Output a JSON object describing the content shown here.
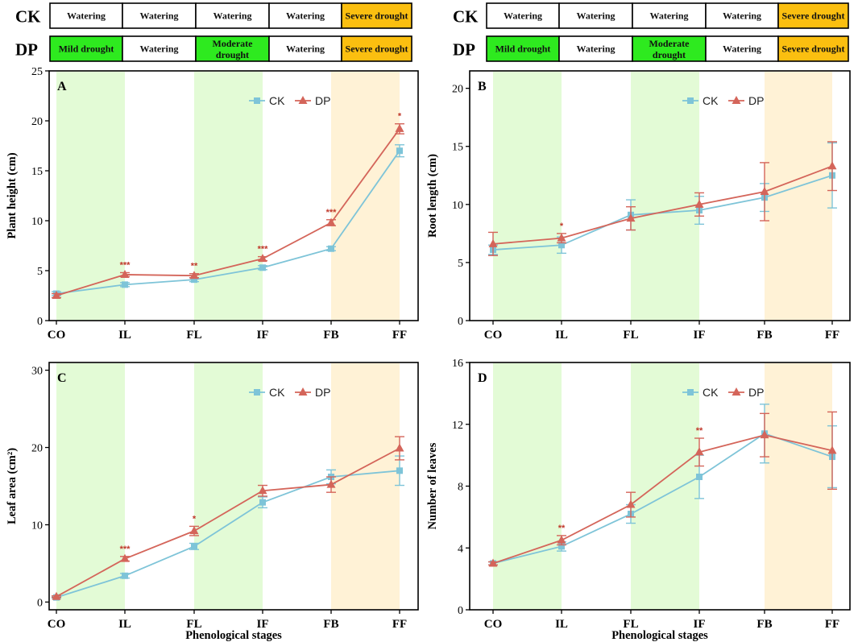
{
  "colors": {
    "ck": "#7ec4d8",
    "dp": "#d4655a",
    "watering": "#ffffff",
    "mild": "#2eea1f",
    "moderate": "#2eea1f",
    "severe": "#fbbf10",
    "band_green": "#e3fbd6",
    "band_orange": "#fff2d6",
    "star": "#c0392b"
  },
  "treatments": [
    {
      "label": "CK",
      "segments": [
        {
          "text": "Watering",
          "kind": "watering"
        },
        {
          "text": "Watering",
          "kind": "watering"
        },
        {
          "text": "Watering",
          "kind": "watering"
        },
        {
          "text": "Watering",
          "kind": "watering"
        },
        {
          "text": "Severe drought",
          "kind": "severe"
        }
      ]
    },
    {
      "label": "DP",
      "segments": [
        {
          "text": "Mild drought",
          "kind": "mild"
        },
        {
          "text": "Watering",
          "kind": "watering"
        },
        {
          "text": "Moderate drought",
          "kind": "moderate"
        },
        {
          "text": "Watering",
          "kind": "watering"
        },
        {
          "text": "Severe drought",
          "kind": "severe"
        }
      ]
    }
  ],
  "chart_data": [
    {
      "id": "A",
      "type": "line",
      "categories": [
        "CO",
        "IL",
        "FL",
        "IF",
        "FB",
        "FF"
      ],
      "xlabel": "",
      "ylabel": "Plant height (cm)",
      "ylim": [
        0,
        25
      ],
      "yticks": [
        0,
        5,
        10,
        15,
        20,
        25
      ],
      "bands": [
        {
          "from": 0,
          "to": 1,
          "kind": "band_green"
        },
        {
          "from": 2,
          "to": 3,
          "kind": "band_green"
        },
        {
          "from": 4,
          "to": 5,
          "kind": "band_orange"
        }
      ],
      "legend": [
        "CK",
        "DP"
      ],
      "series": [
        {
          "name": "CK",
          "values": [
            2.7,
            3.6,
            4.1,
            5.3,
            7.2,
            17.0
          ],
          "errors": [
            0.2,
            0.2,
            0.2,
            0.2,
            0.2,
            0.6
          ]
        },
        {
          "name": "DP",
          "values": [
            2.5,
            4.6,
            4.5,
            6.2,
            9.8,
            19.2
          ],
          "errors": [
            0.2,
            0.2,
            0.2,
            0.2,
            0.3,
            0.5
          ]
        }
      ],
      "significance": [
        "",
        "***",
        "**",
        "***",
        "***",
        "*"
      ]
    },
    {
      "id": "B",
      "type": "line",
      "categories": [
        "CO",
        "IL",
        "FL",
        "IF",
        "FB",
        "FF"
      ],
      "xlabel": "",
      "ylabel": "Root length (cm)",
      "ylim": [
        0,
        21.5
      ],
      "yticks": [
        0,
        5,
        10,
        15,
        20
      ],
      "bands": [
        {
          "from": 0,
          "to": 1,
          "kind": "band_green"
        },
        {
          "from": 2,
          "to": 3,
          "kind": "band_green"
        },
        {
          "from": 4,
          "to": 5,
          "kind": "band_orange"
        }
      ],
      "legend": [
        "CK",
        "DP"
      ],
      "series": [
        {
          "name": "CK",
          "values": [
            6.1,
            6.5,
            9.1,
            9.5,
            10.6,
            12.5
          ],
          "errors": [
            0.4,
            0.7,
            1.3,
            1.2,
            1.2,
            2.8
          ]
        },
        {
          "name": "DP",
          "values": [
            6.6,
            7.1,
            8.8,
            10.0,
            11.1,
            13.3
          ],
          "errors": [
            1.0,
            0.4,
            1.0,
            1.0,
            2.5,
            2.1
          ]
        }
      ],
      "significance": [
        "",
        "*",
        "",
        "",
        "",
        ""
      ]
    },
    {
      "id": "C",
      "type": "line",
      "categories": [
        "CO",
        "IL",
        "FL",
        "IF",
        "FB",
        "FF"
      ],
      "xlabel": "Phenological stages",
      "ylabel": "Leaf area (cm²)",
      "ylim": [
        -1,
        31
      ],
      "yticks": [
        0,
        10,
        20,
        30
      ],
      "bands": [
        {
          "from": 0,
          "to": 1,
          "kind": "band_green"
        },
        {
          "from": 2,
          "to": 3,
          "kind": "band_green"
        },
        {
          "from": 4,
          "to": 5,
          "kind": "band_orange"
        }
      ],
      "legend": [
        "CK",
        "DP"
      ],
      "series": [
        {
          "name": "CK",
          "values": [
            0.6,
            3.4,
            7.2,
            12.9,
            16.2,
            17.0
          ],
          "errors": [
            0.1,
            0.3,
            0.4,
            0.7,
            0.9,
            1.9
          ]
        },
        {
          "name": "DP",
          "values": [
            0.7,
            5.6,
            9.2,
            14.4,
            15.2,
            19.9
          ],
          "errors": [
            0.1,
            0.3,
            0.6,
            0.7,
            1.0,
            1.5
          ]
        }
      ],
      "significance": [
        "",
        "***",
        "*",
        "",
        "",
        ""
      ]
    },
    {
      "id": "D",
      "type": "line",
      "categories": [
        "CO",
        "IL",
        "FL",
        "IF",
        "FB",
        "FF"
      ],
      "xlabel": "Phenological stages",
      "ylabel": "Number of leaves",
      "ylim": [
        0,
        16
      ],
      "yticks": [
        0,
        4,
        8,
        12,
        16
      ],
      "bands": [
        {
          "from": 0,
          "to": 1,
          "kind": "band_green"
        },
        {
          "from": 2,
          "to": 3,
          "kind": "band_green"
        },
        {
          "from": 4,
          "to": 5,
          "kind": "band_orange"
        }
      ],
      "legend": [
        "CK",
        "DP"
      ],
      "series": [
        {
          "name": "CK",
          "values": [
            3.0,
            4.1,
            6.2,
            8.6,
            11.4,
            9.9
          ],
          "errors": [
            0.1,
            0.3,
            0.6,
            1.4,
            1.9,
            2.0
          ]
        },
        {
          "name": "DP",
          "values": [
            3.0,
            4.5,
            6.8,
            10.2,
            11.3,
            10.3
          ],
          "errors": [
            0.1,
            0.3,
            0.8,
            0.9,
            1.4,
            2.5
          ]
        }
      ],
      "significance": [
        "",
        "**",
        "",
        "**",
        "",
        ""
      ]
    }
  ]
}
